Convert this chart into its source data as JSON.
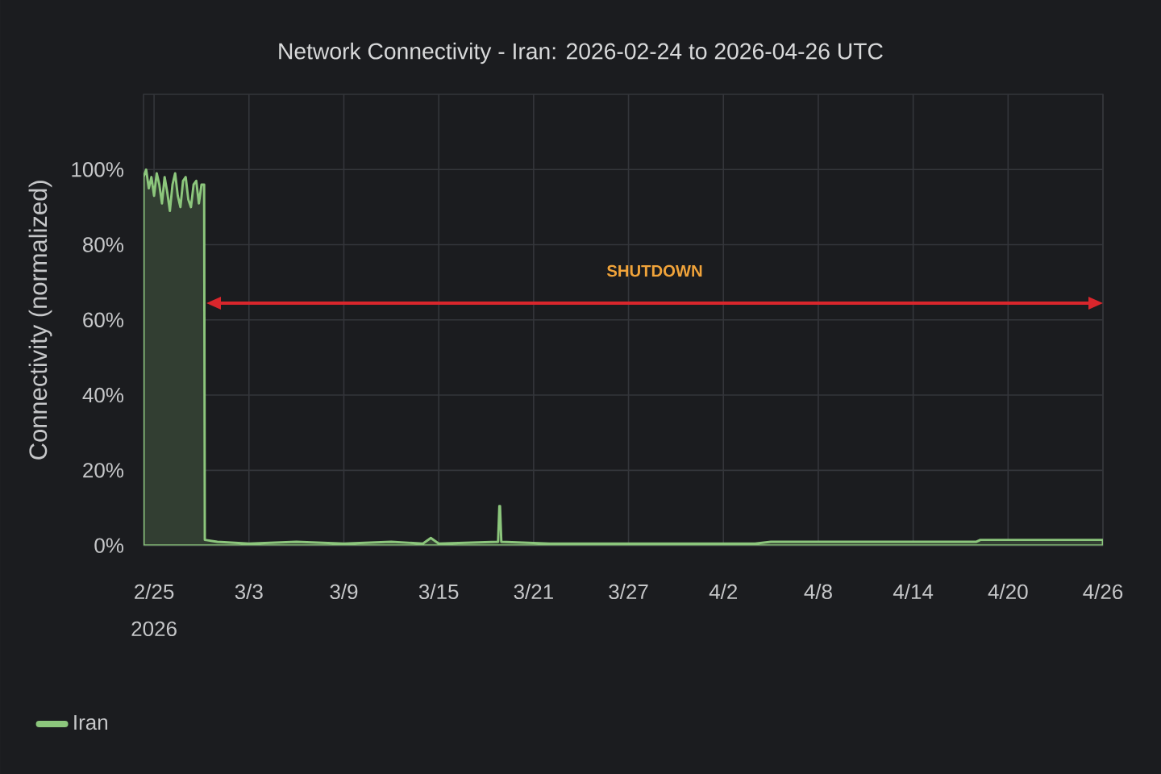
{
  "chart_data": {
    "type": "area",
    "title": "Network Connectivity - Iran: 2026-02-24 to 2026-04-26 UTC",
    "ylabel": "Connectivity (normalized)",
    "x": [
      "2026-02-24T08:00",
      "2026-02-24T12:00",
      "2026-02-24T16:00",
      "2026-02-24T20:00",
      "2026-02-25T00:00",
      "2026-02-25T04:00",
      "2026-02-25T08:00",
      "2026-02-25T12:00",
      "2026-02-25T16:00",
      "2026-02-25T20:00",
      "2026-02-26T00:00",
      "2026-02-26T04:00",
      "2026-02-26T08:00",
      "2026-02-26T12:00",
      "2026-02-26T16:00",
      "2026-02-26T20:00",
      "2026-02-27T00:00",
      "2026-02-27T04:00",
      "2026-02-27T08:00",
      "2026-02-27T12:00",
      "2026-02-27T16:00",
      "2026-02-27T20:00",
      "2026-02-28T00:00",
      "2026-02-28T04:00",
      "2026-02-28T05:00",
      "2026-03-01T00:00",
      "2026-03-03T00:00",
      "2026-03-06T00:00",
      "2026-03-09T00:00",
      "2026-03-12T00:00",
      "2026-03-14T00:00",
      "2026-03-14T12:00",
      "2026-03-15T00:00",
      "2026-03-18T18:00",
      "2026-03-18T20:00",
      "2026-03-18T21:00",
      "2026-03-18T23:00",
      "2026-03-22T00:00",
      "2026-03-28T00:00",
      "2026-04-04T00:00",
      "2026-04-05T00:00",
      "2026-04-12T00:00",
      "2026-04-18T00:00",
      "2026-04-18T06:00",
      "2026-04-26T00:00"
    ],
    "series": [
      {
        "name": "Iran",
        "color": "#8cc67c",
        "values": [
          98,
          100,
          95,
          98,
          93,
          99,
          96,
          91,
          98,
          94,
          89,
          96,
          99,
          93,
          90,
          97,
          98,
          92,
          90,
          96,
          97,
          91,
          96,
          96,
          1.5,
          1,
          0.5,
          1,
          0.5,
          1,
          0.5,
          2,
          0.5,
          1,
          10.5,
          10.5,
          1,
          0.5,
          0.5,
          0.5,
          1,
          1,
          1,
          1.5,
          1.5
        ]
      }
    ],
    "xlim": [
      "2026-02-24T08:00",
      "2026-04-26T00:00"
    ],
    "xticks": [
      {
        "value": "2026-02-25",
        "label": "2/25 2026"
      },
      {
        "value": "2026-03-03",
        "label": "3/3"
      },
      {
        "value": "2026-03-09",
        "label": "3/9"
      },
      {
        "value": "2026-03-15",
        "label": "3/15"
      },
      {
        "value": "2026-03-21",
        "label": "3/21"
      },
      {
        "value": "2026-03-27",
        "label": "3/27"
      },
      {
        "value": "2026-04-02",
        "label": "4/2"
      },
      {
        "value": "2026-04-08",
        "label": "4/8"
      },
      {
        "value": "2026-04-14",
        "label": "4/14"
      },
      {
        "value": "2026-04-20",
        "label": "4/20"
      },
      {
        "value": "2026-04-26",
        "label": "4/26"
      }
    ],
    "ylim": [
      0,
      120
    ],
    "yticks": [
      {
        "value": 0,
        "label": "0%"
      },
      {
        "value": 20,
        "label": "20%"
      },
      {
        "value": 40,
        "label": "40%"
      },
      {
        "value": 60,
        "label": "60%"
      },
      {
        "value": 80,
        "label": "80%"
      },
      {
        "value": 100,
        "label": "100%"
      }
    ],
    "annotations": [
      "SHUTDOWN"
    ],
    "grid": true,
    "legend": "bottom left",
    "line_style": "solid"
  }
}
